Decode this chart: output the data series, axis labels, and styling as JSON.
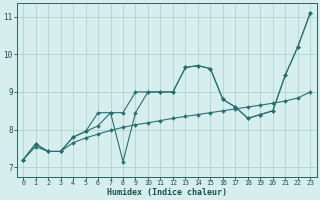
{
  "xlabel": "Humidex (Indice chaleur)",
  "bg_color": "#d6efee",
  "grid_color": "#aed4d0",
  "line_color": "#2a7070",
  "xlim": [
    -0.5,
    23.5
  ],
  "ylim": [
    6.75,
    11.35
  ],
  "xticks": [
    0,
    1,
    2,
    3,
    4,
    5,
    6,
    7,
    8,
    9,
    10,
    11,
    12,
    13,
    14,
    15,
    16,
    17,
    18,
    19,
    20,
    21,
    22,
    23
  ],
  "yticks": [
    7,
    8,
    9,
    10,
    11
  ],
  "line1_x": [
    0,
    1,
    2,
    3,
    4,
    5,
    6,
    7,
    8,
    9,
    10,
    11,
    12,
    13,
    14,
    15,
    16,
    17,
    18,
    19,
    20,
    21,
    22,
    23
  ],
  "line1_y": [
    7.2,
    7.62,
    7.42,
    7.42,
    7.8,
    7.95,
    8.45,
    8.45,
    8.45,
    9.0,
    9.0,
    9.0,
    9.0,
    9.65,
    9.7,
    9.62,
    8.8,
    8.6,
    8.3,
    8.4,
    8.5,
    9.45,
    10.2,
    11.1
  ],
  "line2_x": [
    0,
    1,
    2,
    3,
    4,
    5,
    6,
    7,
    8,
    9,
    10,
    11,
    12,
    13,
    14,
    15,
    16,
    17,
    18,
    19,
    20,
    21,
    22,
    23
  ],
  "line2_y": [
    7.2,
    7.62,
    7.42,
    7.42,
    7.8,
    7.95,
    8.1,
    8.45,
    7.15,
    8.45,
    9.0,
    9.0,
    9.0,
    9.65,
    9.7,
    9.62,
    8.8,
    8.6,
    8.3,
    8.4,
    8.5,
    9.45,
    10.2,
    11.1
  ],
  "line3_x": [
    0,
    1,
    2,
    3,
    4,
    5,
    6,
    7,
    8,
    9,
    10,
    11,
    12,
    13,
    14,
    15,
    16,
    17,
    18,
    19,
    20,
    21,
    22,
    23
  ],
  "line3_y": [
    7.2,
    7.55,
    7.42,
    7.42,
    7.65,
    7.78,
    7.88,
    7.98,
    8.06,
    8.13,
    8.18,
    8.24,
    8.3,
    8.35,
    8.4,
    8.45,
    8.5,
    8.55,
    8.6,
    8.65,
    8.7,
    8.76,
    8.84,
    9.0
  ]
}
